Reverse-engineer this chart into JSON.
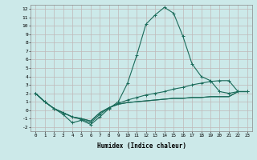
{
  "xlabel": "Humidex (Indice chaleur)",
  "bg_color": "#cce9e9",
  "grid_color": "#c0b8b8",
  "line_color": "#1a6b5a",
  "xlim": [
    -0.5,
    23.5
  ],
  "ylim": [
    -2.5,
    12.5
  ],
  "yticks": [
    -2,
    -1,
    0,
    1,
    2,
    3,
    4,
    5,
    6,
    7,
    8,
    9,
    10,
    11,
    12
  ],
  "xticks": [
    0,
    1,
    2,
    3,
    4,
    5,
    6,
    7,
    8,
    9,
    10,
    11,
    12,
    13,
    14,
    15,
    16,
    17,
    18,
    19,
    20,
    21,
    22,
    23
  ],
  "series_main": [
    2.0,
    1.0,
    0.2,
    -0.5,
    -1.5,
    -1.2,
    -1.7,
    -0.8,
    0.2,
    1.0,
    3.2,
    6.5,
    10.2,
    11.3,
    12.2,
    11.5,
    8.8,
    5.5,
    4.0,
    3.5,
    2.2,
    2.0,
    2.2,
    2.2
  ],
  "series_diag": [
    2.0,
    1.0,
    0.2,
    -0.3,
    -0.8,
    -1.1,
    -1.5,
    -0.5,
    0.3,
    0.8,
    1.2,
    1.5,
    1.8,
    2.0,
    2.2,
    2.5,
    2.7,
    3.0,
    3.2,
    3.4,
    3.5,
    3.5,
    2.2,
    2.2
  ],
  "series_flat1": [
    2.0,
    1.0,
    0.2,
    -0.3,
    -0.8,
    -1.0,
    -1.3,
    -0.3,
    0.3,
    0.7,
    0.9,
    1.0,
    1.1,
    1.2,
    1.3,
    1.4,
    1.4,
    1.5,
    1.5,
    1.6,
    1.6,
    1.6,
    2.2,
    2.2
  ],
  "series_flat2": [
    2.0,
    1.0,
    0.2,
    -0.3,
    -0.8,
    -1.0,
    -1.3,
    -0.3,
    0.3,
    0.7,
    0.9,
    1.0,
    1.1,
    1.2,
    1.3,
    1.4,
    1.4,
    1.5,
    1.5,
    1.6,
    1.6,
    1.6,
    2.2,
    2.2
  ]
}
